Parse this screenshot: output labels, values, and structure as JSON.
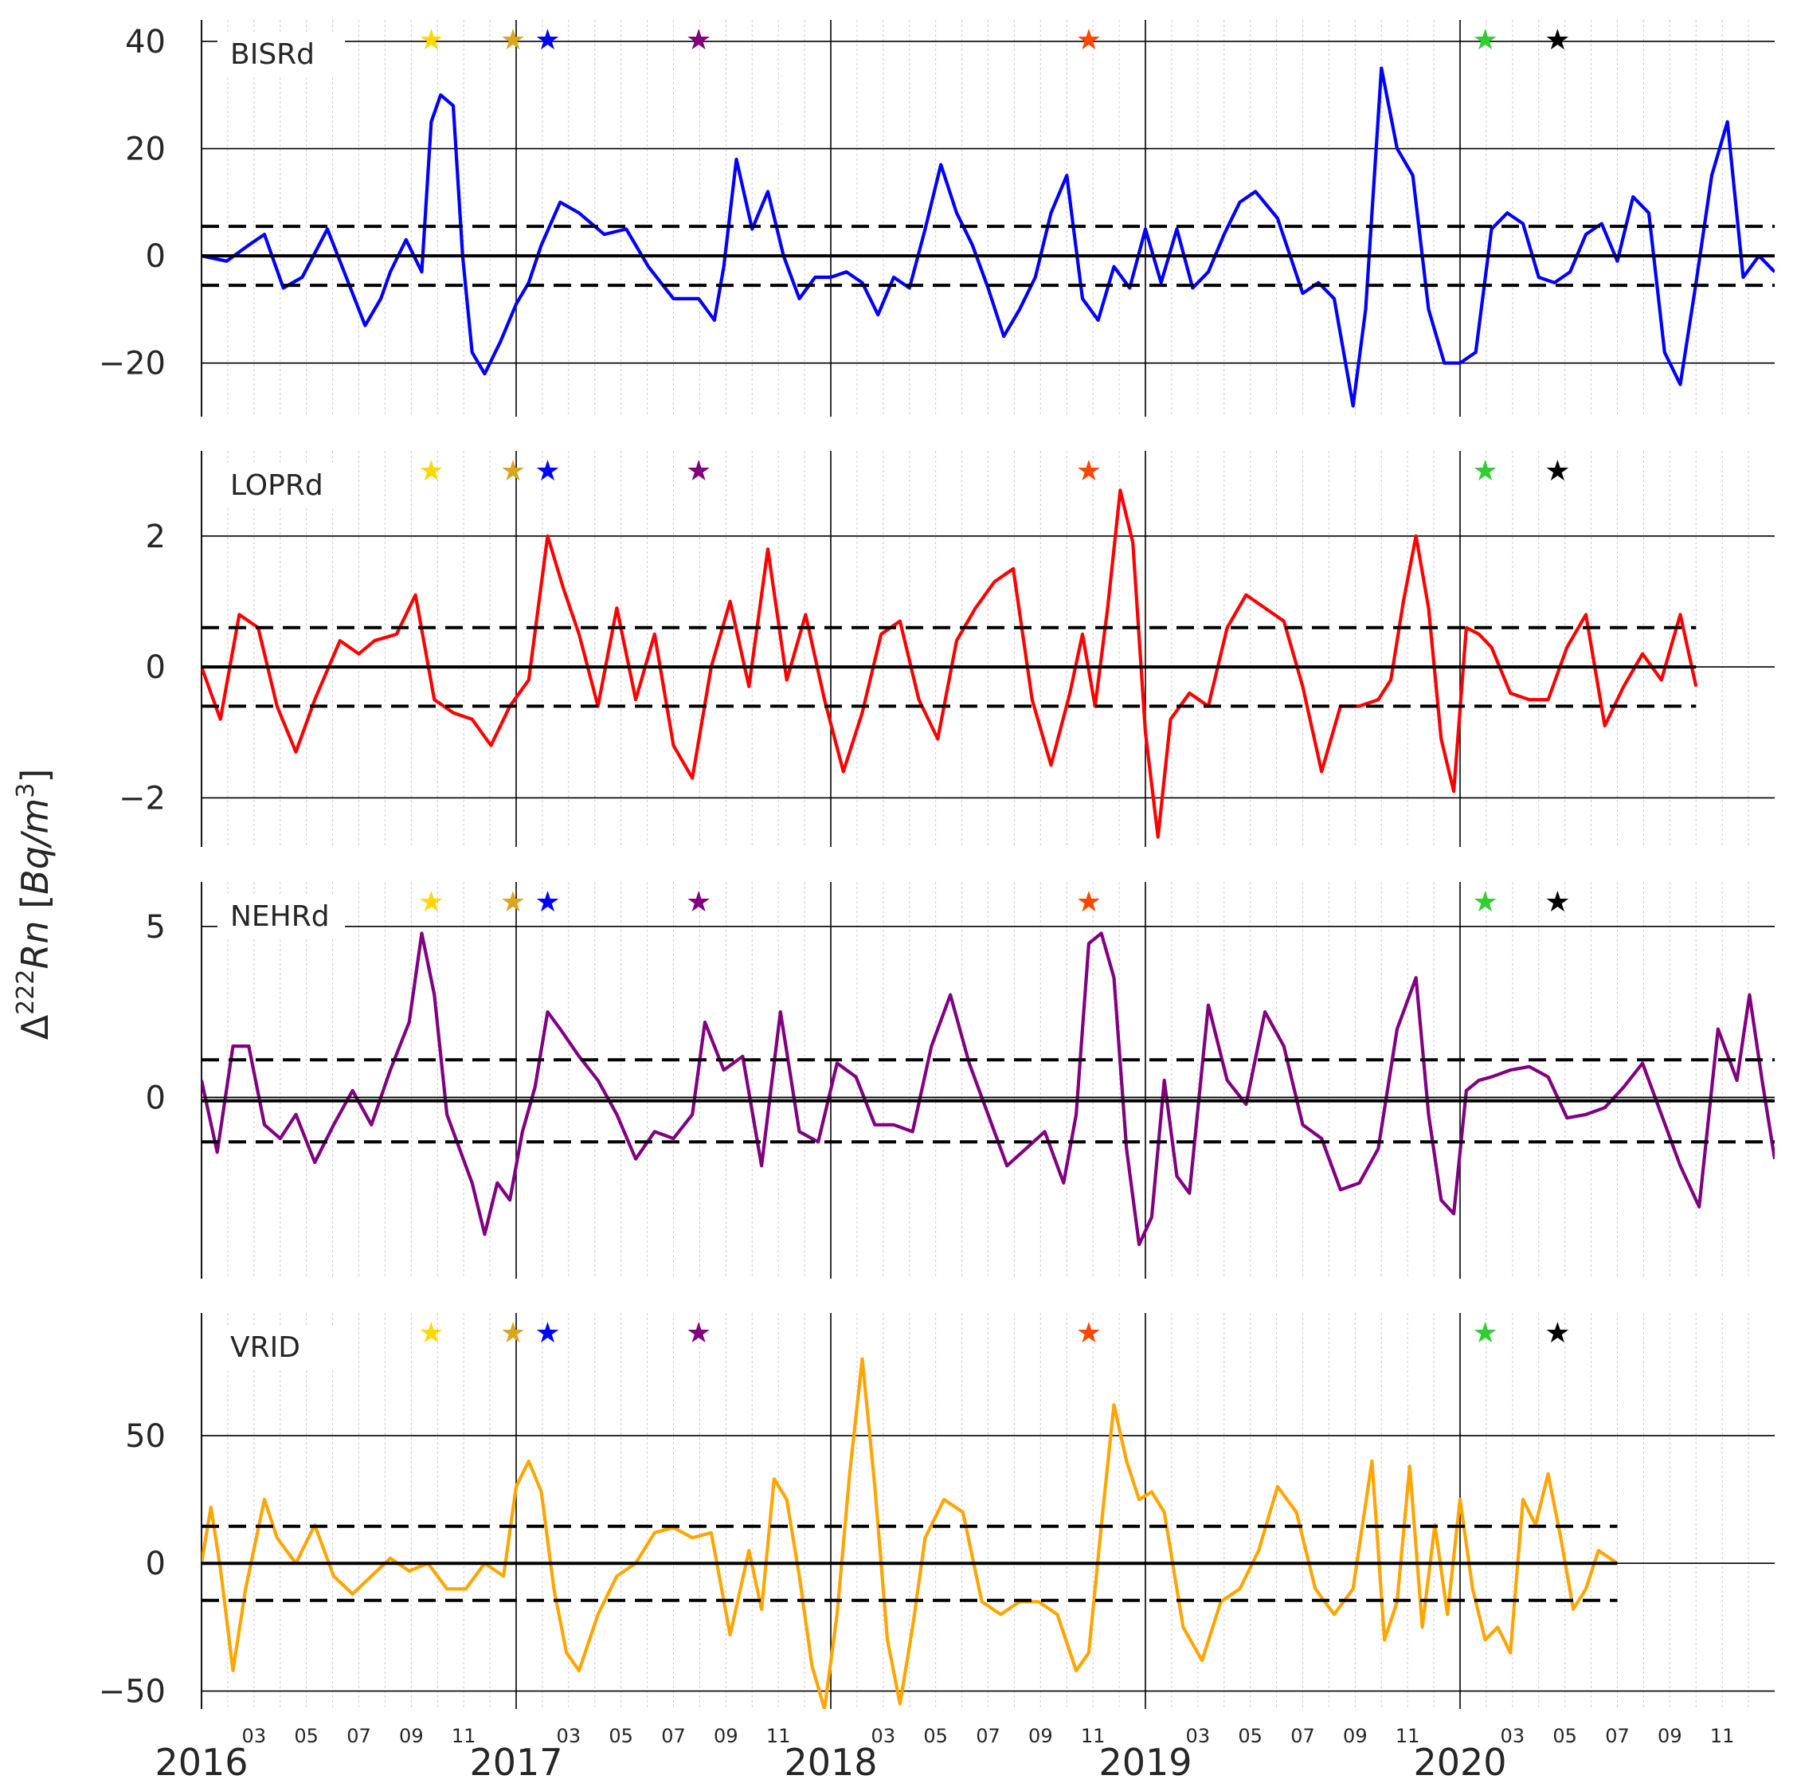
{
  "figure": {
    "ylabel": "Δ222Rn [Bq/m3]",
    "ylabel_parts": {
      "prefix": "Δ",
      "sup": "222",
      "name": "Rn",
      "unit_open": " [",
      "unit": "Bq/m",
      "unit_sup": "3",
      "unit_close": "]"
    }
  },
  "x_axis": {
    "range": [
      2016.0,
      2021.0
    ],
    "year_ticks": [
      {
        "label": "2016",
        "value": 2016.0
      },
      {
        "label": "2017",
        "value": 2017.0
      },
      {
        "label": "2018",
        "value": 2018.0
      },
      {
        "label": "2019",
        "value": 2019.0
      },
      {
        "label": "2020",
        "value": 2020.0
      }
    ],
    "month_ticks": [
      "03",
      "05",
      "07",
      "09",
      "11"
    ]
  },
  "events": [
    {
      "date": 2016.73,
      "color": "#FFD700"
    },
    {
      "date": 2016.99,
      "color": "#DAA520"
    },
    {
      "date": 2017.1,
      "color": "#0000FF"
    },
    {
      "date": 2017.58,
      "color": "#800080"
    },
    {
      "date": 2018.82,
      "color": "#FF4500"
    },
    {
      "date": 2020.08,
      "color": "#32CD32"
    },
    {
      "date": 2020.31,
      "color": "#000000"
    }
  ],
  "chart_data": [
    {
      "type": "line",
      "title": "BISRd",
      "color": "#0000FF",
      "ylim": [
        -30,
        44
      ],
      "yticks": [
        -20,
        0,
        20,
        40
      ],
      "ytick_labels": [
        "−20",
        "0",
        "20",
        "40"
      ],
      "threshold": 5.5,
      "line_end": 2021.0,
      "x": [
        2016.0,
        2016.08,
        2016.15,
        2016.2,
        2016.26,
        2016.32,
        2016.4,
        2016.46,
        2016.52,
        2016.57,
        2016.6,
        2016.65,
        2016.7,
        2016.73,
        2016.76,
        2016.8,
        2016.83,
        2016.86,
        2016.9,
        2016.95,
        2017.0,
        2017.04,
        2017.08,
        2017.14,
        2017.2,
        2017.28,
        2017.35,
        2017.42,
        2017.5,
        2017.58,
        2017.63,
        2017.66,
        2017.7,
        2017.75,
        2017.8,
        2017.85,
        2017.9,
        2017.95,
        2018.0,
        2018.05,
        2018.1,
        2018.15,
        2018.2,
        2018.25,
        2018.3,
        2018.35,
        2018.4,
        2018.45,
        2018.5,
        2018.55,
        2018.6,
        2018.65,
        2018.7,
        2018.75,
        2018.8,
        2018.85,
        2018.9,
        2018.95,
        2019.0,
        2019.05,
        2019.1,
        2019.15,
        2019.2,
        2019.25,
        2019.3,
        2019.35,
        2019.42,
        2019.5,
        2019.55,
        2019.6,
        2019.63,
        2019.66,
        2019.7,
        2019.75,
        2019.8,
        2019.85,
        2019.9,
        2019.95,
        2020.0,
        2020.05,
        2020.1,
        2020.15,
        2020.2,
        2020.25,
        2020.3,
        2020.35,
        2020.4,
        2020.45,
        2020.5,
        2020.55,
        2020.6,
        2020.65,
        2020.7,
        2020.75,
        2020.8,
        2020.85,
        2020.9,
        2020.95,
        2021.0
      ],
      "values": [
        0,
        -1,
        2,
        4,
        -6,
        -4,
        5,
        -4,
        -13,
        -8,
        -3,
        3,
        -3,
        25,
        30,
        28,
        0,
        -18,
        -22,
        -16,
        -9,
        -5,
        2,
        10,
        8,
        4,
        5,
        -2,
        -8,
        -8,
        -12,
        -2,
        18,
        5,
        12,
        0,
        -8,
        -4,
        -4,
        -3,
        -5,
        -11,
        -4,
        -6,
        5,
        17,
        8,
        2,
        -6,
        -15,
        -10,
        -4,
        8,
        15,
        -8,
        -12,
        -2,
        -6,
        5,
        -5,
        5,
        -6,
        -3,
        4,
        10,
        12,
        7,
        -7,
        -5,
        -8,
        -18,
        -28,
        -10,
        35,
        20,
        15,
        -10,
        -20,
        -20,
        -18,
        5,
        8,
        6,
        -4,
        -5,
        -3,
        4,
        6,
        -1,
        11,
        8,
        -18,
        -24,
        -5,
        15,
        25,
        -4,
        0,
        -3
      ]
    },
    {
      "type": "line",
      "title": "LOPRd",
      "color": "#FF0000",
      "ylim": [
        -2.75,
        3.3
      ],
      "yticks": [
        -2,
        0,
        2
      ],
      "ytick_labels": [
        "−2",
        "0",
        "2"
      ],
      "threshold": 0.6,
      "line_end": 2020.75,
      "x": [
        2016.0,
        2016.06,
        2016.12,
        2016.18,
        2016.24,
        2016.3,
        2016.36,
        2016.44,
        2016.5,
        2016.55,
        2016.62,
        2016.68,
        2016.74,
        2016.8,
        2016.86,
        2016.92,
        2016.98,
        2017.04,
        2017.1,
        2017.15,
        2017.2,
        2017.26,
        2017.32,
        2017.38,
        2017.44,
        2017.5,
        2017.56,
        2017.62,
        2017.68,
        2017.74,
        2017.8,
        2017.86,
        2017.92,
        2017.98,
        2018.04,
        2018.1,
        2018.16,
        2018.22,
        2018.28,
        2018.34,
        2018.4,
        2018.46,
        2018.52,
        2018.58,
        2018.64,
        2018.7,
        2018.76,
        2018.8,
        2018.84,
        2018.88,
        2018.92,
        2018.96,
        2019.0,
        2019.04,
        2019.08,
        2019.14,
        2019.2,
        2019.26,
        2019.32,
        2019.38,
        2019.44,
        2019.5,
        2019.56,
        2019.62,
        2019.68,
        2019.74,
        2019.78,
        2019.82,
        2019.86,
        2019.9,
        2019.94,
        2019.98,
        2020.02,
        2020.06,
        2020.1,
        2020.16,
        2020.22,
        2020.28,
        2020.34,
        2020.4,
        2020.46,
        2020.52,
        2020.58,
        2020.64,
        2020.7,
        2020.75
      ],
      "values": [
        0,
        -0.8,
        0.8,
        0.6,
        -0.6,
        -1.3,
        -0.5,
        0.4,
        0.2,
        0.4,
        0.5,
        1.1,
        -0.5,
        -0.7,
        -0.8,
        -1.2,
        -0.6,
        -0.2,
        2.0,
        1.2,
        0.5,
        -0.6,
        0.9,
        -0.5,
        0.5,
        -1.2,
        -1.7,
        0,
        1.0,
        -0.3,
        1.8,
        -0.2,
        0.8,
        -0.5,
        -1.6,
        -0.7,
        0.5,
        0.7,
        -0.5,
        -1.1,
        0.4,
        0.9,
        1.3,
        1.5,
        -0.5,
        -1.5,
        -0.4,
        0.5,
        -0.6,
        0.9,
        2.7,
        1.9,
        -1.0,
        -2.6,
        -0.8,
        -0.4,
        -0.6,
        0.6,
        1.1,
        0.9,
        0.7,
        -0.3,
        -1.6,
        -0.6,
        -0.6,
        -0.5,
        -0.2,
        1.0,
        2.0,
        0.9,
        -1.1,
        -1.9,
        0.6,
        0.5,
        0.3,
        -0.4,
        -0.5,
        -0.5,
        0.3,
        0.8,
        -0.9,
        -0.3,
        0.2,
        -0.2,
        0.8,
        -0.3
      ]
    },
    {
      "type": "line",
      "title": "NEHRd",
      "color": "#800080",
      "ylim": [
        -5.3,
        6.3
      ],
      "yticks": [
        0,
        5
      ],
      "ytick_labels": [
        "0",
        "5"
      ],
      "threshold": 1.2,
      "center_line": -0.1,
      "line_end": 2021.0,
      "x": [
        2016.0,
        2016.05,
        2016.1,
        2016.15,
        2016.2,
        2016.25,
        2016.3,
        2016.36,
        2016.42,
        2016.48,
        2016.54,
        2016.6,
        2016.66,
        2016.7,
        2016.74,
        2016.78,
        2016.82,
        2016.86,
        2016.9,
        2016.94,
        2016.98,
        2017.02,
        2017.06,
        2017.1,
        2017.14,
        2017.2,
        2017.26,
        2017.32,
        2017.38,
        2017.44,
        2017.5,
        2017.56,
        2017.6,
        2017.66,
        2017.72,
        2017.78,
        2017.84,
        2017.9,
        2017.96,
        2018.02,
        2018.08,
        2018.14,
        2018.2,
        2018.26,
        2018.32,
        2018.38,
        2018.44,
        2018.5,
        2018.56,
        2018.62,
        2018.68,
        2018.74,
        2018.78,
        2018.82,
        2018.86,
        2018.9,
        2018.94,
        2018.98,
        2019.02,
        2019.06,
        2019.1,
        2019.14,
        2019.2,
        2019.26,
        2019.32,
        2019.38,
        2019.44,
        2019.5,
        2019.56,
        2019.62,
        2019.68,
        2019.74,
        2019.8,
        2019.86,
        2019.9,
        2019.94,
        2019.98,
        2020.02,
        2020.06,
        2020.1,
        2020.16,
        2020.22,
        2020.28,
        2020.34,
        2020.4,
        2020.46,
        2020.52,
        2020.58,
        2020.64,
        2020.7,
        2020.76,
        2020.82,
        2020.88,
        2020.92,
        2020.96,
        2021.0
      ],
      "values": [
        0.5,
        -1.6,
        1.5,
        1.5,
        -0.8,
        -1.2,
        -0.5,
        -1.9,
        -0.8,
        0.2,
        -0.8,
        0.8,
        2.2,
        4.8,
        3.0,
        -0.5,
        -1.5,
        -2.5,
        -4.0,
        -2.5,
        -3.0,
        -1.0,
        0.3,
        2.5,
        2.0,
        1.2,
        0.5,
        -0.5,
        -1.8,
        -1.0,
        -1.2,
        -0.5,
        2.2,
        0.8,
        1.2,
        -2.0,
        2.5,
        -1.0,
        -1.3,
        1.0,
        0.6,
        -0.8,
        -0.8,
        -1.0,
        1.5,
        3.0,
        1.0,
        -0.5,
        -2.0,
        -1.5,
        -1.0,
        -2.5,
        -0.5,
        4.5,
        4.8,
        3.5,
        -1.5,
        -4.3,
        -3.5,
        0.5,
        -2.3,
        -2.8,
        2.7,
        0.5,
        -0.2,
        2.5,
        1.5,
        -0.8,
        -1.2,
        -2.7,
        -2.5,
        -1.5,
        2.0,
        3.5,
        -0.5,
        -3.0,
        -3.4,
        0.2,
        0.5,
        0.6,
        0.8,
        0.9,
        0.6,
        -0.6,
        -0.5,
        -0.3,
        0.3,
        1.0,
        -0.5,
        -2.0,
        -3.2,
        2.0,
        0.5,
        3.0,
        0.5,
        -1.8
      ]
    },
    {
      "type": "line",
      "title": "VRID",
      "color": "#FFA500",
      "ylim": [
        -57,
        98
      ],
      "yticks": [
        -50,
        0,
        50
      ],
      "ytick_labels": [
        "−50",
        "0",
        "50"
      ],
      "threshold": 14.5,
      "line_end": 2020.5,
      "x": [
        2016.0,
        2016.03,
        2016.06,
        2016.1,
        2016.14,
        2016.2,
        2016.24,
        2016.3,
        2016.36,
        2016.42,
        2016.48,
        2016.54,
        2016.6,
        2016.66,
        2016.72,
        2016.78,
        2016.84,
        2016.9,
        2016.96,
        2017.0,
        2017.04,
        2017.08,
        2017.12,
        2017.16,
        2017.2,
        2017.26,
        2017.32,
        2017.38,
        2017.44,
        2017.5,
        2017.56,
        2017.62,
        2017.68,
        2017.74,
        2017.78,
        2017.82,
        2017.86,
        2017.9,
        2017.94,
        2017.98,
        2018.02,
        2018.06,
        2018.1,
        2018.14,
        2018.18,
        2018.22,
        2018.26,
        2018.3,
        2018.36,
        2018.42,
        2018.48,
        2018.54,
        2018.6,
        2018.66,
        2018.72,
        2018.78,
        2018.82,
        2018.86,
        2018.9,
        2018.94,
        2018.98,
        2019.02,
        2019.06,
        2019.12,
        2019.18,
        2019.24,
        2019.3,
        2019.36,
        2019.42,
        2019.48,
        2019.54,
        2019.6,
        2019.66,
        2019.72,
        2019.76,
        2019.8,
        2019.84,
        2019.88,
        2019.92,
        2019.96,
        2020.0,
        2020.04,
        2020.08,
        2020.12,
        2020.16,
        2020.2,
        2020.24,
        2020.28,
        2020.32,
        2020.36,
        2020.4,
        2020.44,
        2020.5
      ],
      "values": [
        0,
        22,
        -2,
        -42,
        -10,
        25,
        10,
        0,
        15,
        -5,
        -12,
        -5,
        2,
        -3,
        0,
        -10,
        -10,
        0,
        -5,
        30,
        40,
        28,
        -10,
        -35,
        -42,
        -20,
        -5,
        0,
        12,
        14,
        10,
        12,
        -28,
        5,
        -18,
        33,
        25,
        -5,
        -40,
        -57,
        -20,
        35,
        80,
        30,
        -30,
        -55,
        -25,
        10,
        25,
        20,
        -15,
        -20,
        -15,
        -15,
        -20,
        -42,
        -35,
        15,
        62,
        40,
        25,
        28,
        20,
        -25,
        -38,
        -15,
        -10,
        5,
        30,
        20,
        -10,
        -20,
        -10,
        40,
        -30,
        -15,
        38,
        -25,
        15,
        -20,
        25,
        -10,
        -30,
        -25,
        -35,
        25,
        15,
        35,
        10,
        -18,
        -10,
        5,
        0
      ]
    }
  ]
}
